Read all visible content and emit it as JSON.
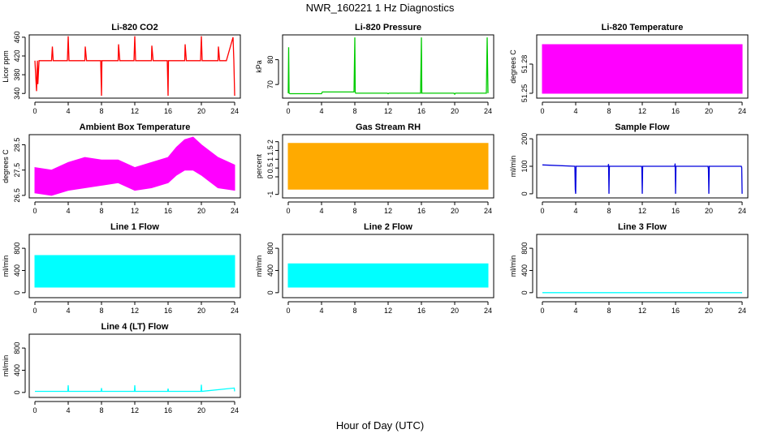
{
  "title": "NWR_160221 1 Hz Diagnostics",
  "xlabel": "Hour of Day (UTC)",
  "chart_data": [
    {
      "type": "line",
      "title": "Li-820 CO2",
      "ylabel": "Licor ppm",
      "color": "#ff0000",
      "xlim": [
        0,
        24
      ],
      "xticks": [
        0,
        4,
        8,
        12,
        16,
        20,
        24
      ],
      "ylim": [
        330,
        465
      ],
      "yticks": [
        340,
        380,
        420,
        460
      ],
      "series": [
        {
          "x": [
            0,
            0.2,
            0.3,
            0.35,
            0.5,
            1.2,
            2.0,
            2.1,
            2.2,
            3.0,
            3.9,
            4.0,
            4.1,
            5.0,
            6.0,
            6.05,
            6.2,
            7.0,
            7.9,
            8.0,
            8.05,
            8.2,
            9.0,
            10.0,
            10.05,
            10.2,
            11.0,
            11.9,
            12.0,
            12.1,
            13.0,
            14.0,
            14.05,
            14.2,
            15.0,
            15.9,
            16.0,
            16.05,
            16.2,
            17.0,
            18.0,
            18.05,
            18.2,
            19.0,
            19.9,
            20.0,
            20.1,
            21.0,
            22.0,
            22.05,
            22.2,
            23.0,
            23.8,
            23.9,
            24.0
          ],
          "y": [
            410,
            345,
            410,
            360,
            410,
            410,
            410,
            440,
            410,
            410,
            410,
            462,
            410,
            410,
            410,
            440,
            410,
            410,
            410,
            335,
            410,
            410,
            410,
            410,
            445,
            410,
            410,
            410,
            462,
            410,
            410,
            410,
            442,
            410,
            410,
            410,
            335,
            410,
            410,
            410,
            410,
            445,
            410,
            410,
            410,
            462,
            410,
            410,
            410,
            440,
            410,
            410,
            460,
            410,
            335
          ]
        }
      ]
    },
    {
      "type": "line",
      "title": "Li-820 Pressure",
      "ylabel": "kPa",
      "color": "#00cc00",
      "xlim": [
        0,
        24
      ],
      "xticks": [
        0,
        4,
        8,
        12,
        16,
        20,
        24
      ],
      "ylim": [
        64.5,
        90
      ],
      "yticks": [
        70,
        80
      ],
      "series": [
        {
          "x": [
            0,
            0.05,
            0.1,
            0.2,
            4.0,
            4.1,
            7.9,
            8.0,
            8.05,
            8.1,
            11.9,
            12.0,
            12.1,
            15.9,
            16.0,
            16.05,
            16.1,
            19.9,
            20.0,
            20.1,
            23.8,
            23.9,
            24.0
          ],
          "y": [
            66.5,
            85,
            66.5,
            66.3,
            66.3,
            67,
            67,
            89,
            67,
            66.5,
            66.5,
            66.3,
            66.5,
            66.5,
            89,
            66.5,
            66.5,
            66.5,
            66.1,
            66.5,
            66.5,
            89,
            66.5
          ]
        }
      ]
    },
    {
      "type": "area",
      "title": "Li-820 Temperature",
      "ylabel": "degrees C",
      "color": "#ff00ff",
      "xlim": [
        0,
        24
      ],
      "xticks": [
        0,
        4,
        8,
        12,
        16,
        20,
        24
      ],
      "ylim": [
        51.245,
        51.31
      ],
      "yticks": [
        51.25,
        51.28
      ],
      "band": {
        "x": [
          0,
          24
        ],
        "low": 51.25,
        "high": 51.3
      }
    },
    {
      "type": "area",
      "title": "Ambient Box Temperature",
      "ylabel": "degrees C",
      "color": "#ff00ff",
      "xlim": [
        0,
        24
      ],
      "xticks": [
        0,
        4,
        8,
        12,
        16,
        20,
        24
      ],
      "ylim": [
        26.4,
        28.9
      ],
      "yticks": [
        26.5,
        27.5,
        28.5
      ],
      "band": {
        "x": [
          0,
          2,
          4,
          6,
          8,
          10,
          12,
          14,
          16,
          17,
          18,
          19,
          20,
          22,
          24
        ],
        "low": [
          26.6,
          26.5,
          26.7,
          26.8,
          26.9,
          27.0,
          26.7,
          26.8,
          27.0,
          27.3,
          27.5,
          27.5,
          27.3,
          26.8,
          26.7
        ],
        "high": [
          27.6,
          27.5,
          27.8,
          28.0,
          27.9,
          27.9,
          27.6,
          27.8,
          28.0,
          28.4,
          28.7,
          28.8,
          28.5,
          28.0,
          27.7
        ]
      }
    },
    {
      "type": "area",
      "title": "Gas Stream RH",
      "ylabel": "percent",
      "color": "#ffaa00",
      "xlim": [
        0,
        24
      ],
      "xticks": [
        0,
        4,
        8,
        12,
        16,
        20,
        24
      ],
      "ylim": [
        -1.2,
        2.4
      ],
      "yticks": [
        -1.0,
        0.0,
        0.5,
        1.0,
        1.5,
        2.0
      ],
      "band": {
        "x": [
          0,
          24
        ],
        "low": -0.7,
        "high": 1.9
      }
    },
    {
      "type": "line",
      "title": "Sample Flow",
      "ylabel": "ml/min",
      "color": "#0000dd",
      "xlim": [
        0,
        24
      ],
      "xticks": [
        0,
        4,
        8,
        12,
        16,
        20,
        24
      ],
      "ylim": [
        -15,
        215
      ],
      "yticks": [
        0,
        100,
        200
      ],
      "series": [
        {
          "x": [
            0,
            3.9,
            3.95,
            4.0,
            4.05,
            7.9,
            7.95,
            8.0,
            8.05,
            11.9,
            11.95,
            12.0,
            12.05,
            15.9,
            15.95,
            16.0,
            16.05,
            19.9,
            19.95,
            20.0,
            20.05,
            23.9,
            23.95,
            24.0
          ],
          "y": [
            105,
            100,
            15,
            0,
            100,
            100,
            108,
            0,
            100,
            100,
            95,
            0,
            100,
            100,
            110,
            0,
            100,
            100,
            90,
            0,
            100,
            100,
            95,
            0
          ]
        }
      ]
    },
    {
      "type": "area",
      "title": "Line 1 Flow",
      "ylabel": "ml/min",
      "color": "#00ffff",
      "xlim": [
        0,
        24
      ],
      "xticks": [
        0,
        4,
        8,
        12,
        16,
        20,
        24
      ],
      "ylim": [
        -90,
        1050
      ],
      "yticks": [
        0,
        400,
        800
      ],
      "band": {
        "x": [
          0,
          24
        ],
        "low": 100,
        "high": 670
      }
    },
    {
      "type": "area",
      "title": "Line 2 Flow",
      "ylabel": "ml/min",
      "color": "#00ffff",
      "xlim": [
        0,
        24
      ],
      "xticks": [
        0,
        4,
        8,
        12,
        16,
        20,
        24
      ],
      "ylim": [
        -90,
        1050
      ],
      "yticks": [
        0,
        400,
        800
      ],
      "band": {
        "x": [
          0,
          24
        ],
        "low": 100,
        "high": 520
      }
    },
    {
      "type": "line",
      "title": "Line 3 Flow",
      "ylabel": "ml/min",
      "color": "#00ffff",
      "xlim": [
        0,
        24
      ],
      "xticks": [
        0,
        4,
        8,
        12,
        16,
        20,
        24
      ],
      "ylim": [
        -90,
        1050
      ],
      "yticks": [
        0,
        400,
        800
      ],
      "series": [
        {
          "x": [
            0,
            24
          ],
          "y": [
            0,
            0
          ]
        }
      ]
    },
    {
      "type": "line",
      "title": "Line 4 (LT) Flow",
      "ylabel": "ml/min",
      "color": "#00ffff",
      "xlim": [
        0,
        24
      ],
      "xticks": [
        0,
        4,
        8,
        12,
        16,
        20,
        24
      ],
      "ylim": [
        -90,
        1050
      ],
      "yticks": [
        0,
        400,
        800
      ],
      "series": [
        {
          "x": [
            0,
            3.95,
            4.0,
            4.05,
            7.95,
            8.0,
            8.05,
            11.95,
            12.0,
            12.05,
            15.95,
            16.0,
            16.05,
            19.95,
            20.0,
            20.05,
            23.95,
            24.0
          ],
          "y": [
            20,
            20,
            130,
            20,
            20,
            80,
            20,
            20,
            130,
            20,
            20,
            70,
            20,
            20,
            140,
            20,
            80,
            20
          ]
        }
      ]
    }
  ]
}
